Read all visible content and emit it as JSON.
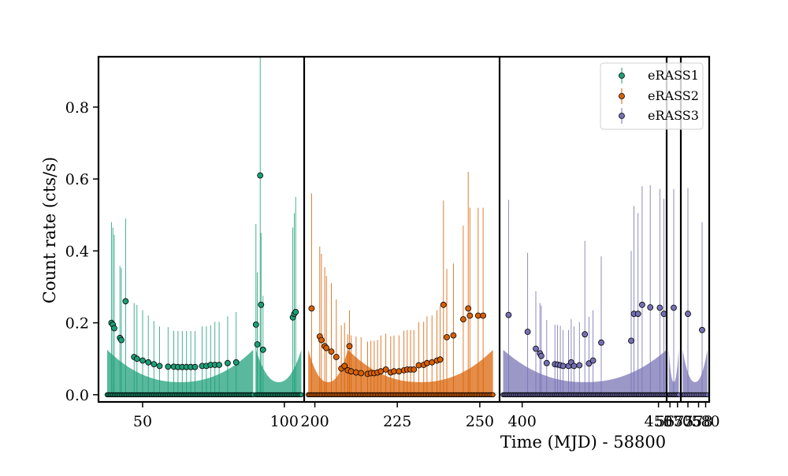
{
  "chart_data": {
    "type": "scatter",
    "title": "",
    "xlabel": "Time (MJD) - 58800",
    "ylabel": "Count rate (cts/s)",
    "ylim": [
      -0.02,
      0.94
    ],
    "yticks": [
      0.0,
      0.2,
      0.4,
      0.6,
      0.8
    ],
    "y_tick_labels": [
      "0.0",
      "0.2",
      "0.4",
      "0.6",
      "0.8"
    ],
    "grid": false,
    "legend_position": "top-right",
    "colors": {
      "eRASS1": "#1b9e77",
      "eRASS2": "#d95f02",
      "eRASS3": "#7570b3"
    },
    "panels": [
      {
        "xlim": [
          35,
          107
        ],
        "xticks": [
          50,
          100
        ],
        "x_tick_labels": [
          "50",
          "100"
        ]
      },
      {
        "xlim": [
          197,
          256
        ],
        "xticks": [
          200,
          225,
          250
        ],
        "x_tick_labels": [
          "200",
          "225",
          "250"
        ]
      },
      {
        "xlim": [
          392,
          453
        ],
        "xticks": [
          400,
          450
        ],
        "x_tick_labels": [
          "400",
          "450"
        ]
      },
      {
        "xlim": [
          566,
          571
        ],
        "xticks": [
          567,
          570
        ],
        "x_tick_labels": [
          "567",
          "570"
        ]
      },
      {
        "xlim": [
          573,
          581
        ],
        "xticks": [
          575,
          578,
          580
        ],
        "x_tick_labels": [
          "575",
          "578",
          "580"
        ]
      }
    ],
    "series": [
      {
        "name": "eRASS1",
        "color": "#1b9e77",
        "x": [
          39,
          39.5,
          40,
          42,
          42.5,
          44,
          47,
          48,
          50,
          52,
          54,
          56,
          59,
          61,
          62.5,
          64,
          65.5,
          67,
          68.5,
          71,
          72.5,
          74,
          75.5,
          77,
          80,
          83,
          90,
          90.5,
          91.5,
          91.8,
          92.5,
          103,
          103.5,
          104
        ],
        "y": [
          0.2,
          0.195,
          0.185,
          0.158,
          0.152,
          0.26,
          0.105,
          0.1,
          0.095,
          0.09,
          0.085,
          0.08,
          0.078,
          0.078,
          0.077,
          0.077,
          0.077,
          0.077,
          0.077,
          0.08,
          0.08,
          0.083,
          0.083,
          0.083,
          0.088,
          0.09,
          0.195,
          0.14,
          0.61,
          0.25,
          0.125,
          0.215,
          0.225,
          0.23
        ],
        "errors": [
          0.28,
          0.27,
          0.26,
          0.2,
          0.2,
          0.23,
          0.15,
          0.15,
          0.14,
          0.13,
          0.12,
          0.11,
          0.11,
          0.1,
          0.1,
          0.1,
          0.1,
          0.1,
          0.1,
          0.11,
          0.11,
          0.11,
          0.12,
          0.12,
          0.13,
          0.14,
          0.28,
          0.2,
          0.33,
          0.2,
          0.15,
          0.25,
          0.28,
          0.32
        ]
      },
      {
        "name": "eRASS2",
        "color": "#d95f02",
        "x": [
          199,
          201.5,
          202,
          203,
          203.5,
          205,
          206.5,
          208,
          209,
          210,
          210.5,
          211,
          212.5,
          214,
          216,
          217,
          218,
          219,
          220,
          221.5,
          223,
          224,
          225.5,
          227,
          228,
          229,
          230,
          231.5,
          233,
          234,
          235.5,
          237,
          238,
          239,
          240,
          242,
          245,
          246.5,
          247,
          249.5,
          251
        ],
        "y": [
          0.24,
          0.162,
          0.152,
          0.135,
          0.13,
          0.12,
          0.105,
          0.073,
          0.08,
          0.068,
          0.135,
          0.065,
          0.062,
          0.06,
          0.058,
          0.06,
          0.06,
          0.062,
          0.065,
          0.07,
          0.062,
          0.065,
          0.065,
          0.068,
          0.07,
          0.07,
          0.07,
          0.082,
          0.083,
          0.088,
          0.09,
          0.095,
          0.098,
          0.25,
          0.16,
          0.165,
          0.21,
          0.24,
          0.22,
          0.22,
          0.22
        ],
        "errors": [
          0.32,
          0.25,
          0.24,
          0.22,
          0.2,
          0.19,
          0.16,
          0.12,
          0.12,
          0.1,
          0.1,
          0.1,
          0.1,
          0.1,
          0.09,
          0.09,
          0.09,
          0.09,
          0.1,
          0.1,
          0.1,
          0.1,
          0.1,
          0.11,
          0.11,
          0.11,
          0.11,
          0.12,
          0.12,
          0.13,
          0.13,
          0.14,
          0.15,
          0.29,
          0.19,
          0.2,
          0.26,
          0.38,
          0.3,
          0.3,
          0.3
        ]
      },
      {
        "name": "eRASS3",
        "color": "#7570b3",
        "x": [
          395,
          402,
          405,
          406.5,
          407,
          409,
          412,
          413,
          414,
          415,
          417,
          418,
          419,
          421,
          423,
          424.5,
          426,
          429,
          440,
          441,
          442.5,
          444,
          447,
          450.5,
          452,
          568.5,
          575,
          579
        ],
        "y": [
          0.222,
          0.175,
          0.128,
          0.115,
          0.108,
          0.088,
          0.085,
          0.084,
          0.082,
          0.08,
          0.08,
          0.09,
          0.08,
          0.082,
          0.168,
          0.087,
          0.095,
          0.145,
          0.15,
          0.225,
          0.225,
          0.25,
          0.243,
          0.242,
          0.225,
          0.242,
          0.225,
          0.18
        ],
        "errors": [
          0.32,
          0.22,
          0.16,
          0.14,
          0.14,
          0.12,
          0.11,
          0.11,
          0.11,
          0.1,
          0.1,
          0.12,
          0.11,
          0.12,
          0.26,
          0.13,
          0.14,
          0.24,
          0.25,
          0.3,
          0.28,
          0.33,
          0.34,
          0.33,
          0.32,
          0.33,
          0.35,
          0.3
        ]
      }
    ]
  }
}
